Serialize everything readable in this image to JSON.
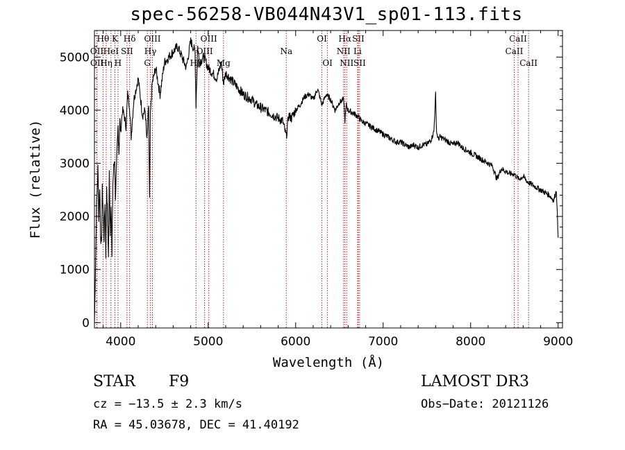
{
  "chart_data": {
    "type": "line",
    "title": "spec-56258-VB044N43V1_sp01-113.fits",
    "xlabel": "Wavelength (Å)",
    "ylabel": "Flux (relative)",
    "xlim": [
      3700,
      9050
    ],
    "ylim": [
      -100,
      5500
    ],
    "x_ticks": [
      4000,
      5000,
      6000,
      7000,
      8000,
      9000
    ],
    "y_ticks": [
      0,
      1000,
      2000,
      3000,
      4000,
      5000
    ],
    "grid": false,
    "line_color": "#000000",
    "marker_color": "#b22222",
    "series": [
      {
        "name": "flux",
        "x": [
          3700,
          3715,
          3725,
          3740,
          3750,
          3760,
          3770,
          3780,
          3790,
          3800,
          3810,
          3820,
          3830,
          3840,
          3850,
          3860,
          3870,
          3880,
          3890,
          3900,
          3910,
          3920,
          3930,
          3940,
          3950,
          3960,
          3970,
          3980,
          3990,
          4000,
          4020,
          4040,
          4060,
          4080,
          4100,
          4120,
          4150,
          4200,
          4250,
          4280,
          4300,
          4320,
          4330,
          4340,
          4350,
          4360,
          4400,
          4450,
          4500,
          4550,
          4600,
          4650,
          4700,
          4750,
          4800,
          4850,
          4861,
          4880,
          4900,
          4950,
          5000,
          5050,
          5100,
          5150,
          5175,
          5200,
          5250,
          5300,
          5350,
          5400,
          5450,
          5500,
          5550,
          5600,
          5650,
          5700,
          5750,
          5800,
          5850,
          5893,
          5920,
          5950,
          6000,
          6050,
          6100,
          6150,
          6200,
          6250,
          6300,
          6350,
          6400,
          6450,
          6500,
          6550,
          6563,
          6580,
          6600,
          6650,
          6700,
          6750,
          6800,
          6850,
          6900,
          6950,
          7000,
          7050,
          7100,
          7150,
          7200,
          7250,
          7300,
          7350,
          7400,
          7450,
          7500,
          7550,
          7580,
          7600,
          7610,
          7630,
          7650,
          7700,
          7750,
          7800,
          7850,
          7900,
          7950,
          8000,
          8050,
          8100,
          8150,
          8200,
          8250,
          8300,
          8350,
          8400,
          8450,
          8498,
          8550,
          8600,
          8650,
          8700,
          8750,
          8800,
          8850,
          8900,
          8950,
          8980,
          9000
        ],
        "y": [
          0,
          1300,
          2200,
          2900,
          1900,
          2600,
          1700,
          1400,
          2500,
          2100,
          1600,
          2300,
          1300,
          2600,
          1900,
          1300,
          2800,
          1700,
          2300,
          1200,
          2600,
          2900,
          3100,
          2400,
          2800,
          3300,
          3700,
          3200,
          3800,
          3600,
          4000,
          3900,
          3700,
          4300,
          4100,
          3500,
          4200,
          4600,
          3900,
          4000,
          3400,
          4100,
          2300,
          3900,
          4200,
          4500,
          4800,
          4300,
          4900,
          5000,
          5100,
          5200,
          5000,
          4800,
          5300,
          5100,
          4100,
          5200,
          4900,
          5000,
          4800,
          4700,
          4600,
          4900,
          4500,
          4700,
          4600,
          4500,
          4400,
          4300,
          4250,
          4200,
          4100,
          4050,
          4000,
          3950,
          3900,
          3850,
          3800,
          3500,
          3900,
          3850,
          4000,
          4100,
          4250,
          4300,
          4200,
          4400,
          4100,
          4300,
          4200,
          4000,
          4150,
          4200,
          3800,
          4100,
          4000,
          3950,
          3900,
          3800,
          3750,
          3700,
          3650,
          3600,
          3550,
          3500,
          3450,
          3400,
          3400,
          3350,
          3300,
          3350,
          3300,
          3350,
          3350,
          3450,
          3600,
          4300,
          3600,
          3450,
          3500,
          3450,
          3400,
          3350,
          3400,
          3300,
          3250,
          3200,
          3150,
          3100,
          3050,
          3000,
          2950,
          2700,
          2900,
          2850,
          2800,
          2800,
          2700,
          2750,
          2650,
          2600,
          2550,
          2500,
          2450,
          2400,
          2300,
          2500,
          1600
        ]
      }
    ],
    "line_markers": [
      {
        "label": "Hθ",
        "x": 3798,
        "row": 0
      },
      {
        "label": "OII",
        "x": 3727,
        "row": 1
      },
      {
        "label": "OII",
        "x": 3729,
        "row": 2
      },
      {
        "label": "K",
        "x": 3934,
        "row": 0
      },
      {
        "label": "HeI",
        "x": 3889,
        "row": 1
      },
      {
        "label": "Hη",
        "x": 3835,
        "row": 2
      },
      {
        "label": "Hδ",
        "x": 4102,
        "row": 0
      },
      {
        "label": "SII",
        "x": 4072,
        "row": 1
      },
      {
        "label": "H",
        "x": 3969,
        "row": 2
      },
      {
        "label": "OIII",
        "x": 4363,
        "row": 0
      },
      {
        "label": "Hγ",
        "x": 4340,
        "row": 1
      },
      {
        "label": "G",
        "x": 4305,
        "row": 2
      },
      {
        "label": "OIII",
        "x": 5007,
        "row": 0
      },
      {
        "label": "OIII",
        "x": 4959,
        "row": 1
      },
      {
        "label": "Hβ",
        "x": 4861,
        "row": 2
      },
      {
        "label": "Mg",
        "x": 5175,
        "row": 2
      },
      {
        "label": "Na",
        "x": 5893,
        "row": 1
      },
      {
        "label": "OI",
        "x": 6300,
        "row": 0
      },
      {
        "label": "OI",
        "x": 6364,
        "row": 2
      },
      {
        "label": "Hα",
        "x": 6563,
        "row": 0
      },
      {
        "label": "NII",
        "x": 6548,
        "row": 1
      },
      {
        "label": "NII",
        "x": 6583,
        "row": 2
      },
      {
        "label": "SII",
        "x": 6716,
        "row": 0
      },
      {
        "label": "Li",
        "x": 6708,
        "row": 1
      },
      {
        "label": "SII",
        "x": 6731,
        "row": 2
      },
      {
        "label": "CaII",
        "x": 8542,
        "row": 0
      },
      {
        "label": "CaII",
        "x": 8498,
        "row": 1
      },
      {
        "label": "CaII",
        "x": 8662,
        "row": 2
      }
    ]
  },
  "info": {
    "object_class": "STAR",
    "subclass": "F9",
    "survey": "LAMOST DR3",
    "redshift_line": "cz = −13.5 ± 2.3 km/s",
    "obs_date": "Obs−Date: 20121126",
    "coords_line": "RA =  45.03678, DEC =  41.40192"
  }
}
